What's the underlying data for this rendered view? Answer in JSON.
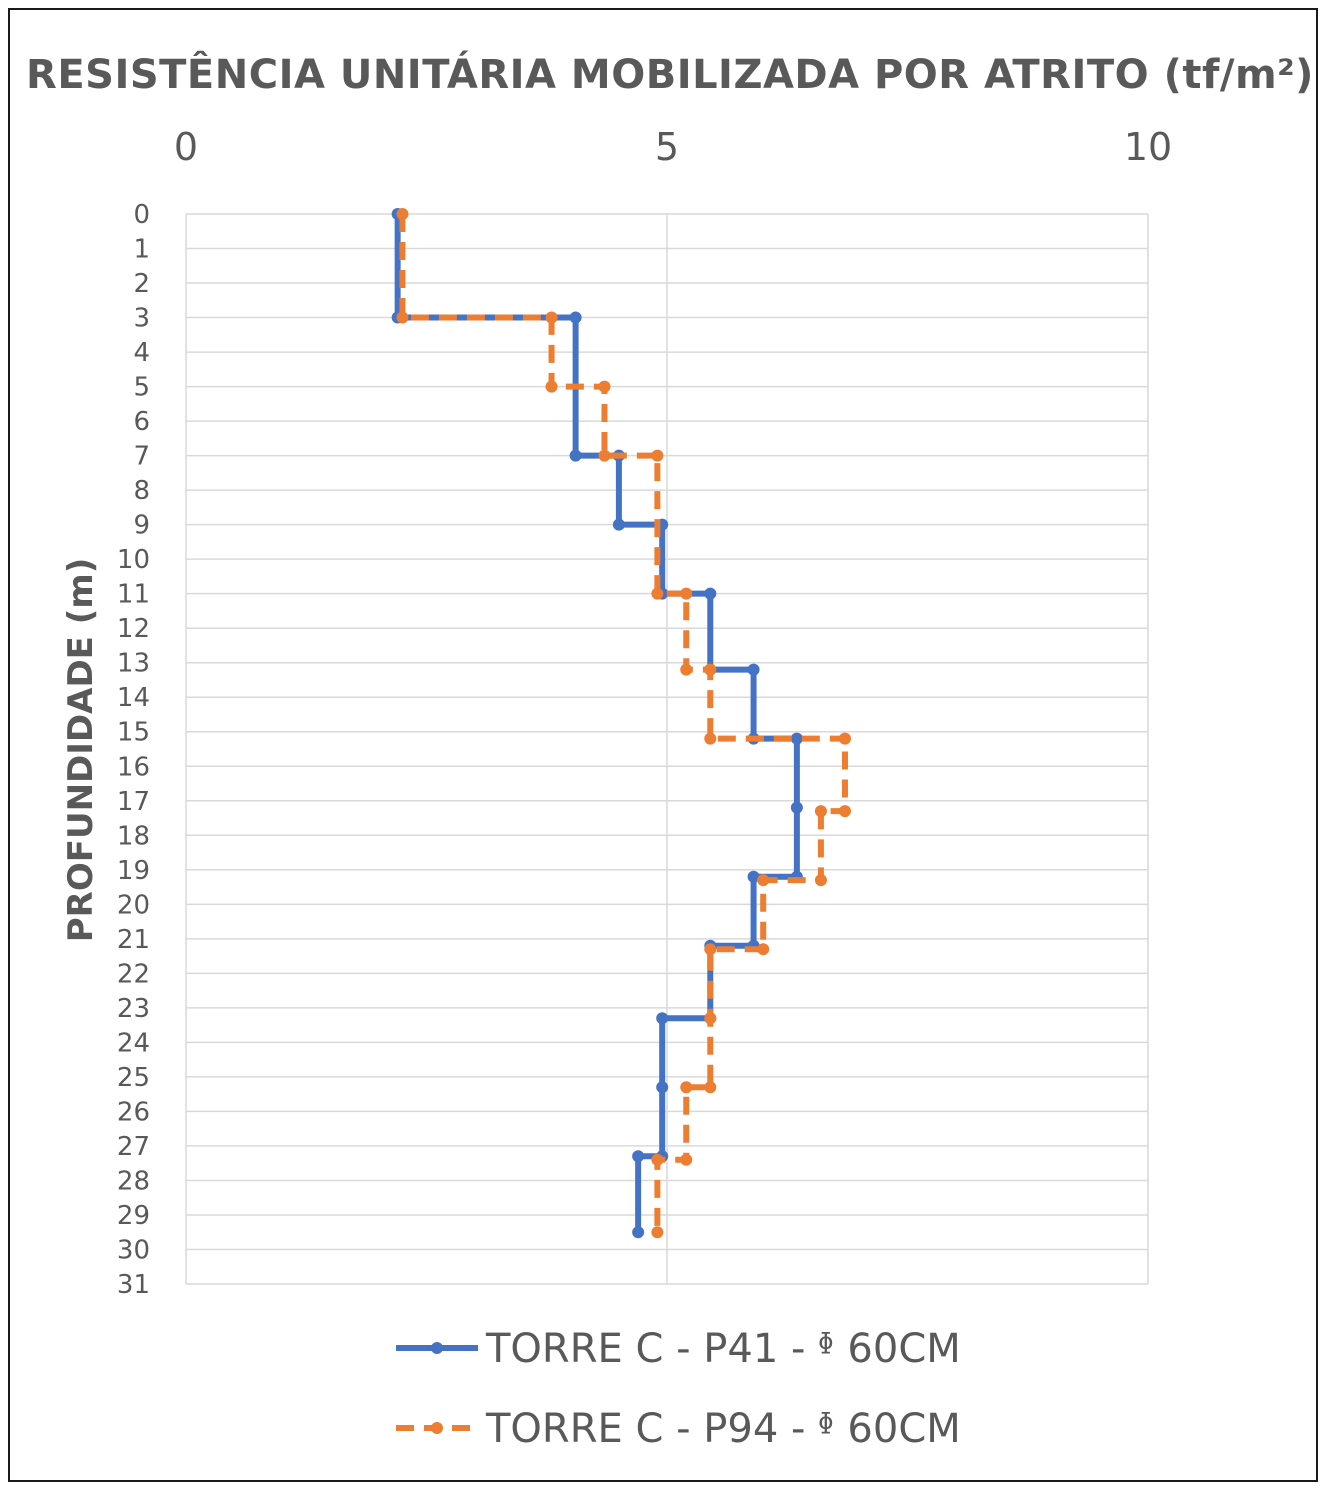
{
  "chart_data": {
    "type": "line",
    "title": "RESISTÊNCIA  UNITÁRIA MOBILIZADA POR ATRITO (tf/m²)",
    "ylabel": "PROFUNDIDADE (m)",
    "xlabel": "",
    "xlim": [
      0,
      10
    ],
    "ylim": [
      0,
      31
    ],
    "y_inverted": true,
    "x_axis_position": "top",
    "x_ticks": [
      "0",
      "5",
      "10"
    ],
    "y_ticks": [
      "0",
      "1",
      "2",
      "3",
      "4",
      "5",
      "6",
      "7",
      "8",
      "9",
      "10",
      "11",
      "12",
      "13",
      "14",
      "15",
      "16",
      "17",
      "18",
      "19",
      "20",
      "21",
      "22",
      "23",
      "24",
      "25",
      "26",
      "27",
      "28",
      "29",
      "30",
      "31"
    ],
    "grid": true,
    "legend_position": "bottom",
    "series": [
      {
        "name": "TORRE C - P41 - ᶲ 60CM",
        "color": "#4472c4",
        "dash": "solid",
        "points": [
          [
            2.2,
            0
          ],
          [
            2.2,
            3
          ],
          [
            4.05,
            3
          ],
          [
            4.05,
            7
          ],
          [
            4.5,
            7
          ],
          [
            4.5,
            9
          ],
          [
            4.95,
            9
          ],
          [
            4.95,
            11
          ],
          [
            5.45,
            11
          ],
          [
            5.45,
            13.2
          ],
          [
            5.9,
            13.2
          ],
          [
            5.9,
            15.2
          ],
          [
            6.35,
            15.2
          ],
          [
            6.35,
            17.2
          ],
          [
            6.35,
            19.2
          ],
          [
            5.9,
            19.2
          ],
          [
            5.9,
            21.2
          ],
          [
            5.45,
            21.2
          ],
          [
            5.45,
            23.3
          ],
          [
            4.95,
            23.3
          ],
          [
            4.95,
            25.3
          ],
          [
            4.95,
            27.3
          ],
          [
            4.7,
            27.3
          ],
          [
            4.7,
            29.5
          ]
        ]
      },
      {
        "name": "TORRE C - P94 - ᶲ 60CM",
        "color": "#ed7d31",
        "dash": "dashed",
        "points": [
          [
            2.25,
            0
          ],
          [
            2.25,
            3
          ],
          [
            3.8,
            3
          ],
          [
            3.8,
            5
          ],
          [
            4.35,
            5
          ],
          [
            4.35,
            7
          ],
          [
            4.9,
            7
          ],
          [
            4.9,
            11
          ],
          [
            5.2,
            11
          ],
          [
            5.2,
            13.2
          ],
          [
            5.45,
            13.2
          ],
          [
            5.45,
            15.2
          ],
          [
            6.85,
            15.2
          ],
          [
            6.85,
            17.3
          ],
          [
            6.6,
            17.3
          ],
          [
            6.6,
            19.3
          ],
          [
            6.0,
            19.3
          ],
          [
            6.0,
            21.3
          ],
          [
            5.45,
            21.3
          ],
          [
            5.45,
            23.3
          ],
          [
            5.45,
            25.3
          ],
          [
            5.2,
            25.3
          ],
          [
            5.2,
            27.4
          ],
          [
            4.9,
            27.4
          ],
          [
            4.9,
            29.5
          ]
        ]
      }
    ]
  }
}
